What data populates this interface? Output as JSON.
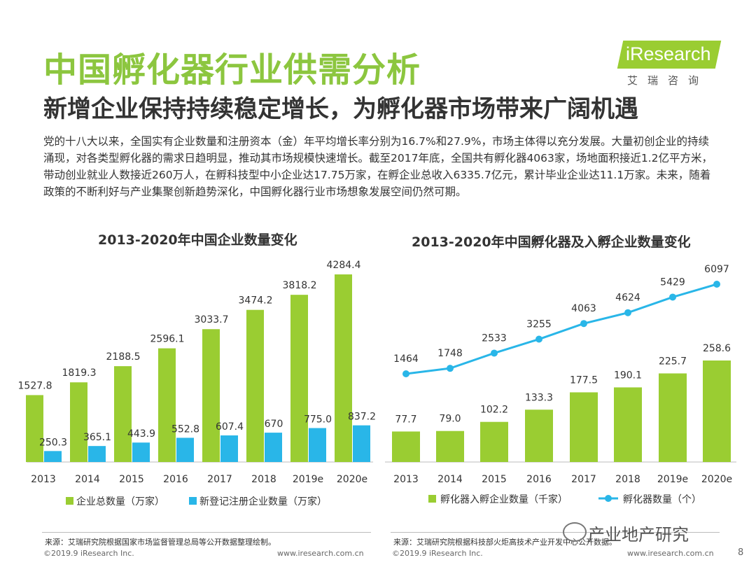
{
  "slide": {
    "title": "中国孵化器行业供需分析",
    "subtitle": "新增企业保持持续稳定增长，为孵化器市场带来广阔机遇",
    "body": "党的十八大以来，全国实有企业数量和注册资本（金）年平均增长率分别为16.7%和27.9%，市场主体得以充分发展。大量初创企业的持续涌现，对各类型孵化器的需求日趋明显，推动其市场规模快速增长。截至2017年底，全国共有孵化器4063家，场地面积接近1.2亿平方米，带动创业就业人数接近260万人，在孵科技型中小企业达17.75万家，在孵企业总收入6335.7亿元，累计毕业企业达11.1万家。未来，随着政策的不断利好与产业集聚创新趋势深化，中国孵化器行业市场想象发展空间仍然可期。",
    "page_number": "8"
  },
  "logo": {
    "brand": "iResearch",
    "sub": "艾瑞咨询"
  },
  "colors": {
    "green": "#9acd32",
    "blue": "#29b6e8",
    "title_green": "#8cc63f"
  },
  "chart_data": [
    {
      "type": "bar",
      "title": "2013-2020年中国企业数量变化",
      "categories": [
        "2013",
        "2014",
        "2015",
        "2016",
        "2017",
        "2018",
        "2019e",
        "2020e"
      ],
      "series": [
        {
          "name": "企业总数量（万家）",
          "values": [
            1527.8,
            1819.3,
            2188.5,
            2596.1,
            3033.7,
            3474.2,
            3818.2,
            4284.4
          ],
          "labels": [
            "1527.8",
            "1819.3",
            "2188.5",
            "2596.1",
            "3033.7",
            "3474.2",
            "3818.2",
            "4284.4"
          ]
        },
        {
          "name": "新登记注册企业数量（万家）",
          "values": [
            250.3,
            365.1,
            443.9,
            552.8,
            607.4,
            670,
            775.0,
            837.2
          ],
          "labels": [
            "250.3",
            "365.1",
            "443.9",
            "552.8",
            "607.4",
            "670",
            "775.0",
            "837.2"
          ]
        }
      ],
      "ylim": [
        0,
        4400
      ],
      "source": "来源：艾瑞研究院根据国家市场监督管理总局等公开数据整理绘制。"
    },
    {
      "type": "bar+line",
      "title": "2013-2020年中国孵化器及入孵企业数量变化",
      "categories": [
        "2013",
        "2014",
        "2015",
        "2016",
        "2017",
        "2018",
        "2019e",
        "2020e"
      ],
      "series": [
        {
          "name": "孵化器入孵企业数量（千家）",
          "type": "bar",
          "values": [
            77.7,
            79.0,
            102.2,
            133.3,
            177.5,
            190.1,
            225.7,
            258.6
          ],
          "labels": [
            "77.7",
            "79.0",
            "102.2",
            "133.3",
            "177.5",
            "190.1",
            "225.7",
            "258.6"
          ]
        },
        {
          "name": "孵化器数量（个）",
          "type": "line",
          "values": [
            1464,
            1748,
            2533,
            3255,
            4063,
            4624,
            5429,
            6097
          ],
          "labels": [
            "1464",
            "1748",
            "2533",
            "3255",
            "4063",
            "4624",
            "5429",
            "6097"
          ]
        }
      ],
      "bar_ylim": [
        0,
        380
      ],
      "line_ylim": [
        -6500,
        7000
      ],
      "source": "来源：艾瑞研究院根据科技部火炬高技术产业开发中心公开数据。"
    }
  ],
  "footer": {
    "left_copyright": "©2019.9 iResearch Inc.",
    "left_url": "www.iresearch.com.cn",
    "right_copyright": "©2019.9 iResearch Inc.",
    "right_url": "www.iresearch.com.cn",
    "watermark": "产业地产研究"
  }
}
